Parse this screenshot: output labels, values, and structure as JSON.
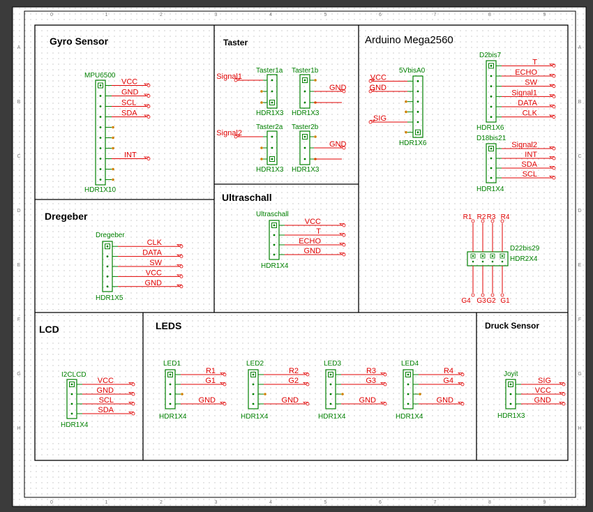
{
  "sections": {
    "gyro": "Gyro Sensor",
    "taster": "Taster",
    "arduino": "Arduino Mega2560",
    "dregeber": "Dregeber",
    "ultraschall": "Ultraschall",
    "lcd": "LCD",
    "leds": "LEDS",
    "druck": "Druck Sensor"
  },
  "frame_ticks": {
    "columns": [
      "0",
      "1",
      "2",
      "3",
      "4",
      "5",
      "6",
      "7",
      "8",
      "9"
    ],
    "rows": [
      "A",
      "B",
      "C",
      "D",
      "E",
      "F",
      "G",
      "H"
    ]
  },
  "components": {
    "mpu6500": {
      "ref": "MPU6500",
      "type": "HDR1X10"
    },
    "taster1a": {
      "ref": "Taster1a",
      "type": "HDR1X3"
    },
    "taster1b": {
      "ref": "Taster1b",
      "type": "HDR1X3"
    },
    "taster2a": {
      "ref": "Taster2a",
      "type": "HDR1X3"
    },
    "taster2b": {
      "ref": "Taster2b",
      "type": "HDR1X3"
    },
    "v5bis0": {
      "ref": "5VbisA0",
      "type": "HDR1X6"
    },
    "d2bis7": {
      "ref": "D2bis7",
      "type": "HDR1X6"
    },
    "d18bis21": {
      "ref": "D18bis21",
      "type": "HDR1X4"
    },
    "d22bis29": {
      "ref": "D22bis29",
      "type": "HDR2X4"
    },
    "dregeber": {
      "ref": "Dregeber",
      "type": "HDR1X5"
    },
    "ultraschall": {
      "ref": "Ultraschall",
      "type": "HDR1X4"
    },
    "i2clcd": {
      "ref": "I2CLCD",
      "type": "HDR1X4"
    },
    "led1": {
      "ref": "LED1",
      "type": "HDR1X4"
    },
    "led2": {
      "ref": "LED2",
      "type": "HDR1X4"
    },
    "led3": {
      "ref": "LED3",
      "type": "HDR1X4"
    },
    "led4": {
      "ref": "LED4",
      "type": "HDR1X4"
    },
    "joyit": {
      "ref": "Joyit",
      "type": "HDR1X3"
    }
  },
  "nets": {
    "mpu6500": [
      "VCC",
      "GND",
      "SCL",
      "SDA",
      "INT"
    ],
    "signal1": "Signal1",
    "signal2": "Signal2",
    "gnd": "GND",
    "v5bis0": [
      "VCC",
      "GND",
      "SIG"
    ],
    "d2bis7": [
      "T",
      "ECHO",
      "SW",
      "Signal1",
      "DATA",
      "CLK"
    ],
    "d18bis21": [
      "Signal2",
      "INT",
      "SDA",
      "SCL"
    ],
    "d22bis29_top": [
      "R1",
      "R2",
      "R3",
      "R4"
    ],
    "d22bis29_bottom": [
      "G4",
      "G3",
      "G2",
      "G1"
    ],
    "dregeber": [
      "CLK",
      "DATA",
      "SW",
      "VCC",
      "GND"
    ],
    "ultraschall": [
      "VCC",
      "T",
      "ECHO",
      "GND"
    ],
    "i2clcd": [
      "VCC",
      "GND",
      "SCL",
      "SDA"
    ],
    "led1": [
      "R1",
      "G1",
      "GND"
    ],
    "led2": [
      "R2",
      "G2",
      "GND"
    ],
    "led3": [
      "R3",
      "G3",
      "GND"
    ],
    "led4": [
      "R4",
      "G4",
      "GND"
    ],
    "joyit": [
      "SIG",
      "VCC",
      "GND"
    ]
  },
  "colors": {
    "sheet": "#ffffff",
    "border": "#000000",
    "component": "#008000",
    "net": "#e00000",
    "pin_dot": "#d08000",
    "grid": "#9a9a9a",
    "backdrop": "#3b3b3b"
  }
}
